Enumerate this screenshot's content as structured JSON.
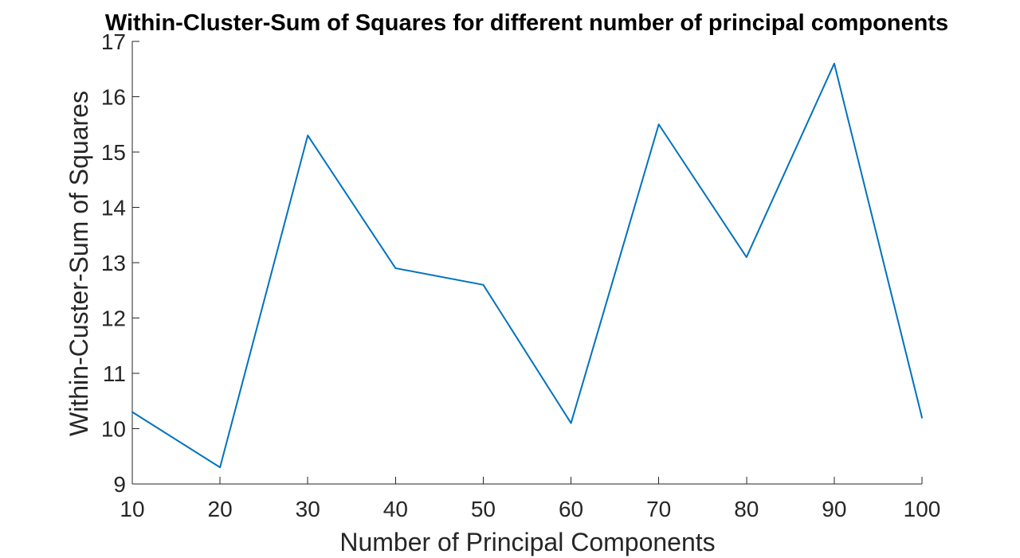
{
  "chart_data": {
    "type": "line",
    "title": "Within-Cluster-Sum of Squares for different number of principal components",
    "xlabel": "Number of Principal Components",
    "ylabel": "Within-Custer-Sum of Squares",
    "xlim": [
      10,
      100
    ],
    "ylim": [
      9,
      17
    ],
    "x_ticks": [
      "10",
      "20",
      "30",
      "40",
      "50",
      "60",
      "70",
      "80",
      "90",
      "100"
    ],
    "y_ticks": [
      "9",
      "10",
      "11",
      "12",
      "13",
      "14",
      "15",
      "16",
      "17"
    ],
    "grid": false,
    "legend": false,
    "line_color": "#0072BD",
    "axis_color": "#262626",
    "series": [
      {
        "x": [
          10,
          20,
          30,
          40,
          50,
          60,
          70,
          80,
          90,
          100
        ],
        "values": [
          10.3,
          9.3,
          15.3,
          12.9,
          12.6,
          10.1,
          15.5,
          13.1,
          16.6,
          10.2
        ]
      }
    ]
  }
}
